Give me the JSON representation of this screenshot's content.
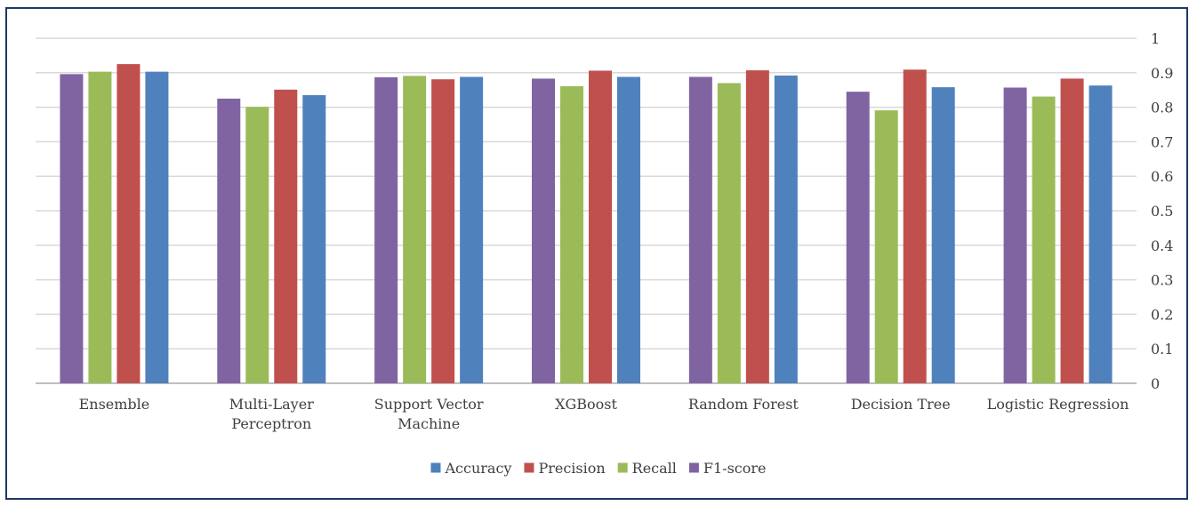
{
  "chart_data": {
    "type": "bar",
    "title": "",
    "xlabel": "",
    "ylabel": "",
    "ylim": [
      0,
      1
    ],
    "yticks": [
      "0",
      "0.1",
      "0.2",
      "0.3",
      "0.4",
      "0.5",
      "0.6",
      "0.7",
      "0.8",
      "0.9",
      "1"
    ],
    "y_axis_side": "right",
    "grid": true,
    "legend_position": "bottom",
    "categories": [
      [
        "Ensemble"
      ],
      [
        "Multi-Layer",
        "Perceptron"
      ],
      [
        "Support Vector",
        "Machine"
      ],
      [
        "XGBoost"
      ],
      [
        "Random Forest"
      ],
      [
        "Decision Tree"
      ],
      [
        "Logistic Regression"
      ]
    ],
    "bar_order": [
      "F1-score",
      "Recall",
      "Precision",
      "Accuracy"
    ],
    "series": [
      {
        "name": "Accuracy",
        "color": "#4f81bd",
        "values": [
          0.903,
          0.835,
          0.888,
          0.888,
          0.892,
          0.858,
          0.863
        ]
      },
      {
        "name": "Precision",
        "color": "#c0504d",
        "values": [
          0.925,
          0.851,
          0.881,
          0.906,
          0.907,
          0.909,
          0.883
        ]
      },
      {
        "name": "Recall",
        "color": "#9bbb59",
        "values": [
          0.903,
          0.801,
          0.891,
          0.861,
          0.87,
          0.791,
          0.831
        ]
      },
      {
        "name": "F1-score",
        "color": "#8064a2",
        "values": [
          0.896,
          0.825,
          0.887,
          0.883,
          0.888,
          0.845,
          0.857
        ]
      }
    ],
    "legend": [
      "Accuracy",
      "Precision",
      "Recall",
      "F1-score"
    ]
  }
}
